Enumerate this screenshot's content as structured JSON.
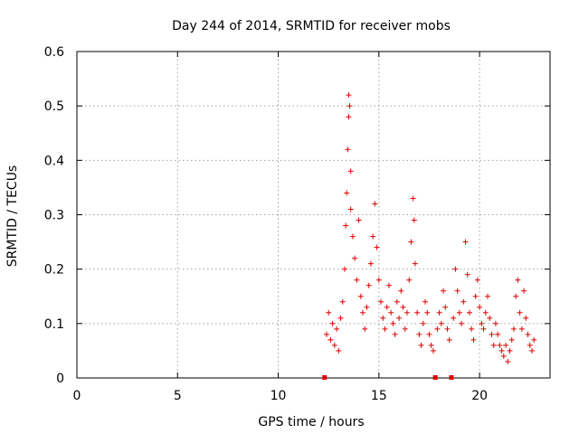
{
  "chart_data": {
    "type": "scatter",
    "title": "Day 244 of 2014, SRMTID for receiver mobs",
    "xlabel": "GPS time / hours",
    "ylabel": "SRMTID / TECUs",
    "xlim": [
      0,
      23.5
    ],
    "ylim": [
      0,
      0.6
    ],
    "x_ticks": [
      0,
      5,
      10,
      15,
      20
    ],
    "x_tick_labels": [
      "0",
      "5",
      "10",
      "15",
      "20"
    ],
    "y_ticks": [
      0,
      0.1,
      0.2,
      0.3,
      0.4,
      0.5,
      0.6
    ],
    "y_tick_labels": [
      "0",
      "0.1",
      "0.2",
      "0.3",
      "0.4",
      "0.5",
      "0.6"
    ],
    "grid": true,
    "marker": "plus",
    "color": "#e00000",
    "zero_markers_x": [
      12.3,
      17.8,
      18.6
    ],
    "series": [
      {
        "name": "mobs",
        "points": [
          [
            12.4,
            0.08
          ],
          [
            12.5,
            0.12
          ],
          [
            12.6,
            0.07
          ],
          [
            12.7,
            0.1
          ],
          [
            12.8,
            0.06
          ],
          [
            12.9,
            0.09
          ],
          [
            13.0,
            0.05
          ],
          [
            13.1,
            0.11
          ],
          [
            13.2,
            0.14
          ],
          [
            13.3,
            0.2
          ],
          [
            13.35,
            0.28
          ],
          [
            13.4,
            0.34
          ],
          [
            13.45,
            0.42
          ],
          [
            13.5,
            0.48
          ],
          [
            13.5,
            0.52
          ],
          [
            13.55,
            0.5
          ],
          [
            13.6,
            0.38
          ],
          [
            13.6,
            0.31
          ],
          [
            13.7,
            0.26
          ],
          [
            13.8,
            0.22
          ],
          [
            13.9,
            0.18
          ],
          [
            14.0,
            0.29
          ],
          [
            14.1,
            0.15
          ],
          [
            14.2,
            0.12
          ],
          [
            14.3,
            0.09
          ],
          [
            14.4,
            0.13
          ],
          [
            14.5,
            0.17
          ],
          [
            14.6,
            0.21
          ],
          [
            14.7,
            0.26
          ],
          [
            14.8,
            0.32
          ],
          [
            14.9,
            0.24
          ],
          [
            15.0,
            0.18
          ],
          [
            15.1,
            0.14
          ],
          [
            15.2,
            0.11
          ],
          [
            15.3,
            0.09
          ],
          [
            15.4,
            0.13
          ],
          [
            15.5,
            0.17
          ],
          [
            15.6,
            0.12
          ],
          [
            15.7,
            0.1
          ],
          [
            15.8,
            0.08
          ],
          [
            15.9,
            0.14
          ],
          [
            16.0,
            0.11
          ],
          [
            16.1,
            0.16
          ],
          [
            16.2,
            0.13
          ],
          [
            16.3,
            0.09
          ],
          [
            16.4,
            0.12
          ],
          [
            16.5,
            0.18
          ],
          [
            16.6,
            0.25
          ],
          [
            16.7,
            0.33
          ],
          [
            16.75,
            0.29
          ],
          [
            16.8,
            0.21
          ],
          [
            16.9,
            0.12
          ],
          [
            17.0,
            0.08
          ],
          [
            17.1,
            0.06
          ],
          [
            17.2,
            0.1
          ],
          [
            17.3,
            0.14
          ],
          [
            17.4,
            0.12
          ],
          [
            17.5,
            0.08
          ],
          [
            17.6,
            0.06
          ],
          [
            17.7,
            0.05
          ],
          [
            17.9,
            0.09
          ],
          [
            18.0,
            0.12
          ],
          [
            18.1,
            0.1
          ],
          [
            18.2,
            0.16
          ],
          [
            18.3,
            0.13
          ],
          [
            18.4,
            0.09
          ],
          [
            18.5,
            0.07
          ],
          [
            18.7,
            0.11
          ],
          [
            18.8,
            0.2
          ],
          [
            18.9,
            0.16
          ],
          [
            19.0,
            0.12
          ],
          [
            19.1,
            0.1
          ],
          [
            19.2,
            0.14
          ],
          [
            19.3,
            0.25
          ],
          [
            19.4,
            0.19
          ],
          [
            19.5,
            0.12
          ],
          [
            19.6,
            0.09
          ],
          [
            19.7,
            0.07
          ],
          [
            19.8,
            0.15
          ],
          [
            19.9,
            0.18
          ],
          [
            20.0,
            0.13
          ],
          [
            20.1,
            0.1
          ],
          [
            20.2,
            0.09
          ],
          [
            20.3,
            0.12
          ],
          [
            20.4,
            0.15
          ],
          [
            20.5,
            0.11
          ],
          [
            20.6,
            0.08
          ],
          [
            20.7,
            0.06
          ],
          [
            20.8,
            0.1
          ],
          [
            20.9,
            0.08
          ],
          [
            21.0,
            0.06
          ],
          [
            21.1,
            0.05
          ],
          [
            21.2,
            0.04
          ],
          [
            21.3,
            0.06
          ],
          [
            21.4,
            0.03
          ],
          [
            21.5,
            0.05
          ],
          [
            21.6,
            0.07
          ],
          [
            21.7,
            0.09
          ],
          [
            21.8,
            0.15
          ],
          [
            21.9,
            0.18
          ],
          [
            22.0,
            0.12
          ],
          [
            22.1,
            0.09
          ],
          [
            22.2,
            0.16
          ],
          [
            22.3,
            0.11
          ],
          [
            22.4,
            0.08
          ],
          [
            22.5,
            0.06
          ],
          [
            22.6,
            0.05
          ],
          [
            22.7,
            0.07
          ]
        ]
      }
    ]
  }
}
